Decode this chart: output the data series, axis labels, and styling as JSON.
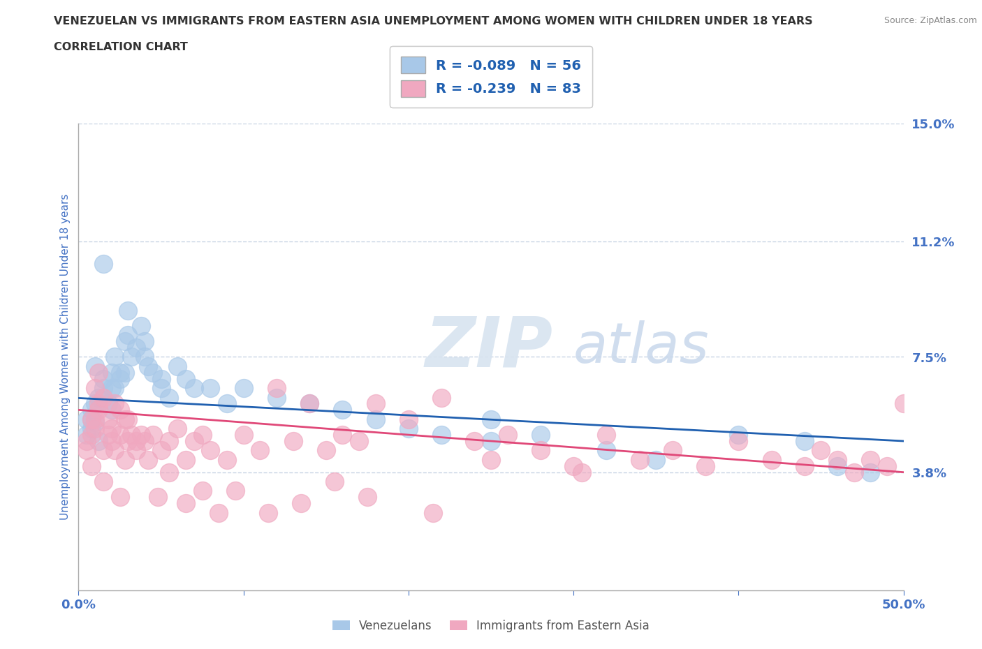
{
  "title_line1": "VENEZUELAN VS IMMIGRANTS FROM EASTERN ASIA UNEMPLOYMENT AMONG WOMEN WITH CHILDREN UNDER 18 YEARS",
  "title_line2": "CORRELATION CHART",
  "source": "Source: ZipAtlas.com",
  "ylabel": "Unemployment Among Women with Children Under 18 years",
  "xlim": [
    0,
    0.5
  ],
  "ylim": [
    0,
    0.15
  ],
  "yticks": [
    0,
    0.038,
    0.075,
    0.112,
    0.15
  ],
  "ytick_labels": [
    "",
    "3.8%",
    "7.5%",
    "11.2%",
    "15.0%"
  ],
  "xticks": [
    0,
    0.1,
    0.2,
    0.3,
    0.4,
    0.5
  ],
  "xtick_labels": [
    "0.0%",
    "",
    "",
    "",
    "",
    "50.0%"
  ],
  "venezuelans_R": -0.089,
  "venezuelans_N": 56,
  "eastern_asia_R": -0.239,
  "eastern_asia_N": 83,
  "blue_color": "#a8c8e8",
  "pink_color": "#f0a8c0",
  "blue_line_color": "#2060b0",
  "pink_line_color": "#e04878",
  "tick_color": "#4472c4",
  "grid_color": "#c8d4e4",
  "watermark_zip_color": "#d8e4f0",
  "watermark_atlas_color": "#c8d8ec",
  "venezuelans_x": [
    0.005,
    0.008,
    0.01,
    0.012,
    0.015,
    0.005,
    0.008,
    0.01,
    0.012,
    0.008,
    0.01,
    0.015,
    0.02,
    0.02,
    0.022,
    0.018,
    0.02,
    0.025,
    0.022,
    0.025,
    0.028,
    0.03,
    0.03,
    0.032,
    0.028,
    0.035,
    0.038,
    0.04,
    0.04,
    0.042,
    0.045,
    0.05,
    0.05,
    0.055,
    0.06,
    0.065,
    0.07,
    0.08,
    0.09,
    0.1,
    0.12,
    0.14,
    0.16,
    0.18,
    0.2,
    0.22,
    0.25,
    0.28,
    0.32,
    0.35,
    0.4,
    0.44,
    0.46,
    0.48,
    0.015,
    0.25
  ],
  "venezuelans_y": [
    0.055,
    0.058,
    0.06,
    0.062,
    0.065,
    0.05,
    0.052,
    0.054,
    0.048,
    0.055,
    0.072,
    0.068,
    0.065,
    0.07,
    0.075,
    0.06,
    0.058,
    0.07,
    0.065,
    0.068,
    0.08,
    0.082,
    0.09,
    0.075,
    0.07,
    0.078,
    0.085,
    0.08,
    0.075,
    0.072,
    0.07,
    0.068,
    0.065,
    0.062,
    0.072,
    0.068,
    0.065,
    0.065,
    0.06,
    0.065,
    0.062,
    0.06,
    0.058,
    0.055,
    0.052,
    0.05,
    0.048,
    0.05,
    0.045,
    0.042,
    0.05,
    0.048,
    0.04,
    0.038,
    0.105,
    0.055
  ],
  "eastern_asia_x": [
    0.005,
    0.008,
    0.01,
    0.012,
    0.008,
    0.005,
    0.01,
    0.012,
    0.015,
    0.008,
    0.01,
    0.012,
    0.015,
    0.018,
    0.02,
    0.018,
    0.022,
    0.02,
    0.025,
    0.022,
    0.025,
    0.028,
    0.03,
    0.028,
    0.032,
    0.03,
    0.035,
    0.038,
    0.04,
    0.042,
    0.045,
    0.05,
    0.055,
    0.06,
    0.065,
    0.07,
    0.075,
    0.08,
    0.09,
    0.1,
    0.11,
    0.12,
    0.13,
    0.14,
    0.15,
    0.16,
    0.17,
    0.18,
    0.2,
    0.22,
    0.24,
    0.25,
    0.26,
    0.28,
    0.3,
    0.32,
    0.34,
    0.36,
    0.38,
    0.4,
    0.42,
    0.44,
    0.45,
    0.46,
    0.47,
    0.48,
    0.49,
    0.5,
    0.015,
    0.025,
    0.035,
    0.048,
    0.055,
    0.065,
    0.075,
    0.085,
    0.095,
    0.115,
    0.135,
    0.155,
    0.175,
    0.215,
    0.305
  ],
  "eastern_asia_y": [
    0.045,
    0.05,
    0.055,
    0.06,
    0.04,
    0.048,
    0.052,
    0.058,
    0.062,
    0.055,
    0.065,
    0.07,
    0.045,
    0.05,
    0.048,
    0.055,
    0.06,
    0.052,
    0.058,
    0.045,
    0.05,
    0.055,
    0.048,
    0.042,
    0.05,
    0.055,
    0.045,
    0.05,
    0.048,
    0.042,
    0.05,
    0.045,
    0.048,
    0.052,
    0.042,
    0.048,
    0.05,
    0.045,
    0.042,
    0.05,
    0.045,
    0.065,
    0.048,
    0.06,
    0.045,
    0.05,
    0.048,
    0.06,
    0.055,
    0.062,
    0.048,
    0.042,
    0.05,
    0.045,
    0.04,
    0.05,
    0.042,
    0.045,
    0.04,
    0.048,
    0.042,
    0.04,
    0.045,
    0.042,
    0.038,
    0.042,
    0.04,
    0.06,
    0.035,
    0.03,
    0.048,
    0.03,
    0.038,
    0.028,
    0.032,
    0.025,
    0.032,
    0.025,
    0.028,
    0.035,
    0.03,
    0.025,
    0.038
  ],
  "ven_trendline_x0": 0.0,
  "ven_trendline_y0": 0.0618,
  "ven_trendline_x1": 0.5,
  "ven_trendline_y1": 0.048,
  "ea_trendline_x0": 0.0,
  "ea_trendline_y0": 0.058,
  "ea_trendline_x1": 0.5,
  "ea_trendline_y1": 0.038
}
